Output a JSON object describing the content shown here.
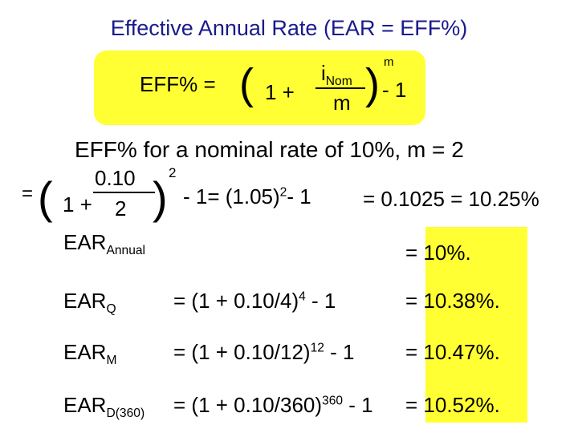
{
  "title": "Effective Annual Rate (EAR = EFF%)",
  "formula": {
    "lhs": "EFF% =",
    "open_paren": "(",
    "one_plus": "1 +",
    "numerator_base": "i",
    "numerator_sub": "Nom",
    "denominator": "m",
    "close_paren": ")",
    "exponent": "m",
    "minus_one": "- 1"
  },
  "example": {
    "heading": "EFF% for a nominal rate of 10%, m = 2",
    "equals": "=",
    "open_paren": "(",
    "one_plus": "1 +",
    "numerator": "0.10",
    "denominator": "2",
    "close_paren": ")",
    "exponent": "2",
    "minus_one": "- 1= (1.05)",
    "sq": "2",
    "minus_one_b": "- 1",
    "result": "= 0.1025 = 10.25%"
  },
  "rows": [
    {
      "base": "EAR",
      "sub": "Annual",
      "formula": "",
      "formula_sup": "",
      "formula_tail": "",
      "result": "=  10%."
    },
    {
      "base": "EAR",
      "sub": "Q",
      "formula": "=  (1 + 0.10/4)",
      "formula_sup": "4",
      "formula_tail": " - 1",
      "result": "=  10.38%."
    },
    {
      "base": "EAR",
      "sub": "M",
      "formula": "=  (1 + 0.10/12)",
      "formula_sup": "12",
      "formula_tail": " - 1",
      "result": "=  10.47%."
    },
    {
      "base": "EAR",
      "sub": "D(360)",
      "formula": "=  (1 + 0.10/360)",
      "formula_sup": "360",
      "formula_tail": " - 1",
      "result": "=  10.52%."
    }
  ],
  "colors": {
    "title": "#1a1a8c",
    "highlight": "#ffff33"
  }
}
